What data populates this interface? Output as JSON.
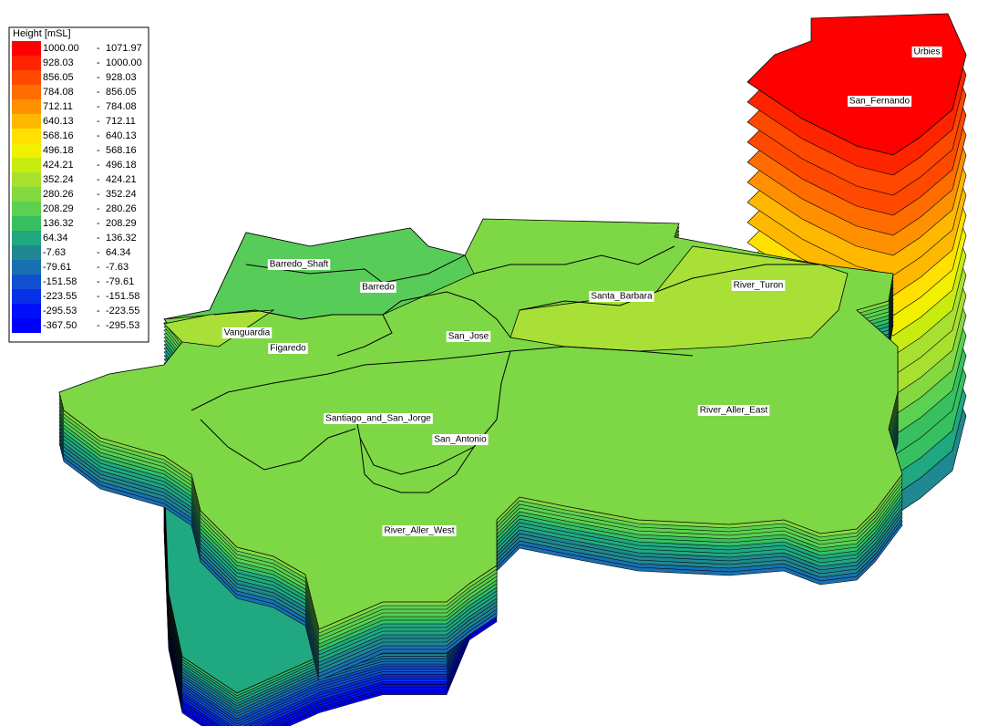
{
  "legend": {
    "title": "Height [mSL]",
    "separator": "-",
    "items": [
      {
        "min": "1000.00",
        "max": "1071.97",
        "color": "#ff0000"
      },
      {
        "min": "928.03",
        "max": "1000.00",
        "color": "#ff2400"
      },
      {
        "min": "856.05",
        "max": "928.03",
        "color": "#ff4800"
      },
      {
        "min": "784.08",
        "max": "856.05",
        "color": "#ff6c00"
      },
      {
        "min": "712.11",
        "max": "784.08",
        "color": "#ff9000"
      },
      {
        "min": "640.13",
        "max": "712.11",
        "color": "#ffb800"
      },
      {
        "min": "568.16",
        "max": "640.13",
        "color": "#ffe000"
      },
      {
        "min": "496.18",
        "max": "568.16",
        "color": "#f0f000"
      },
      {
        "min": "424.21",
        "max": "496.18",
        "color": "#c8ec10"
      },
      {
        "min": "352.24",
        "max": "424.21",
        "color": "#a8e030"
      },
      {
        "min": "280.26",
        "max": "352.24",
        "color": "#84d840"
      },
      {
        "min": "208.29",
        "max": "280.26",
        "color": "#5cd050"
      },
      {
        "min": "136.32",
        "max": "208.29",
        "color": "#38c060"
      },
      {
        "min": "64.34",
        "max": "136.32",
        "color": "#20a880"
      },
      {
        "min": "-7.63",
        "max": "64.34",
        "color": "#208890"
      },
      {
        "min": "-79.61",
        "max": "-7.63",
        "color": "#1870b0"
      },
      {
        "min": "-151.58",
        "max": "-79.61",
        "color": "#1050d0"
      },
      {
        "min": "-223.55",
        "max": "-151.58",
        "color": "#0830e8"
      },
      {
        "min": "-295.53",
        "max": "-223.55",
        "color": "#0010f8"
      },
      {
        "min": "-367.50",
        "max": "-295.53",
        "color": "#0000ff"
      }
    ]
  },
  "regions": [
    "Urbies",
    "San_Fernando",
    "Barredo_Shaft",
    "Barredo",
    "Santa_Barbara",
    "River_Turon",
    "Vanguardia",
    "San_Jose",
    "Figaredo",
    "River_Aller_East",
    "Santiago_and_San_Jorge",
    "San_Antonio",
    "River_Aller_West"
  ]
}
